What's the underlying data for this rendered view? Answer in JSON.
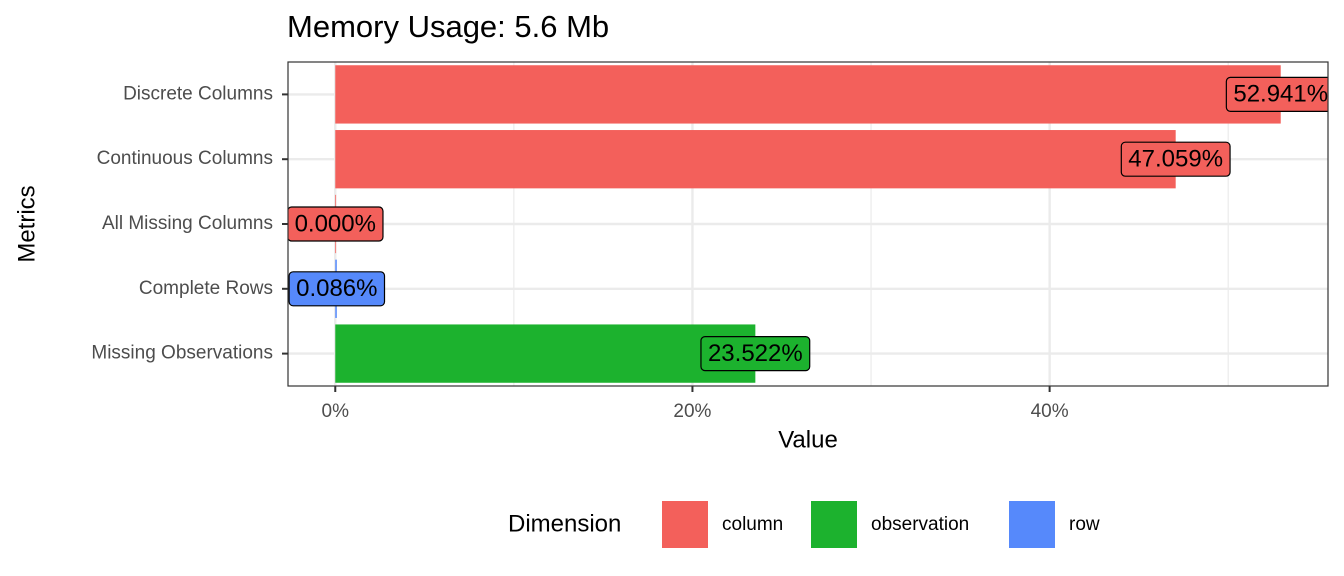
{
  "chart_data": {
    "type": "hbar",
    "title": "Memory Usage: 5.6 Mb",
    "x_label": "Value",
    "y_label": "Metrics",
    "categories": [
      "Discrete Columns",
      "Continuous Columns",
      "All Missing Columns",
      "Complete Rows",
      "Missing Observations"
    ],
    "legend_title": "Dimension",
    "legend_position": "bottom",
    "series": [
      {
        "name": "column",
        "color": "#f3605b",
        "values": [
          52.941,
          47.059,
          0,
          null,
          null
        ],
        "value_labels": [
          "52.941%",
          "47.059%",
          "0.000%",
          null,
          null
        ]
      },
      {
        "name": "observation",
        "color": "#1cb22e",
        "values": [
          null,
          null,
          null,
          null,
          23.522
        ],
        "value_labels": [
          null,
          null,
          null,
          null,
          "23.522%"
        ]
      },
      {
        "name": "row",
        "color": "#5689fb",
        "values": [
          null,
          null,
          null,
          0.086,
          null
        ],
        "value_labels": [
          null,
          null,
          null,
          "0.086%",
          null
        ]
      }
    ],
    "xlim": [
      -2.647,
      55.588
    ],
    "xticks": [
      {
        "value": 0,
        "label": "0%"
      },
      {
        "value": 20,
        "label": "20%"
      },
      {
        "value": 40,
        "label": "40%"
      }
    ],
    "minor_xticks": [
      10,
      30,
      50
    ],
    "grid": true
  }
}
